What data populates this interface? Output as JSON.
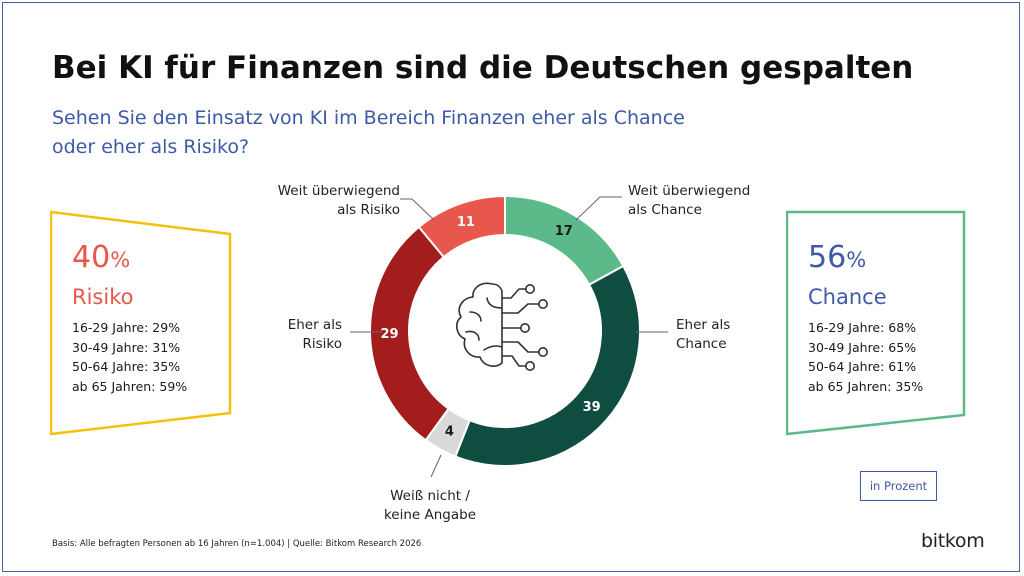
{
  "title": "Bei KI für Finanzen sind die Deutschen gespalten",
  "subtitle_lines": [
    "Sehen Sie den Einsatz von KI im Bereich Finanzen eher als Chance",
    "oder eher als Risiko?"
  ],
  "colors": {
    "accent_blue": "#3e5aa8",
    "risk_light": "#e8574b",
    "risk_dark": "#a31d1d",
    "chance_light": "#5cba8a",
    "chance_dark": "#0e4d3f",
    "unknown": "#d9d9d9",
    "box_risk_border": "#f4c20d",
    "box_chance_border": "#5cba8a",
    "icon": "#333333"
  },
  "risk_box": {
    "percent": "40",
    "unit": "%",
    "label": "Risiko",
    "ages": [
      "16-29 Jahre: 29%",
      "30-49 Jahre: 31%",
      "50-64 Jahre: 35%",
      "ab 65 Jahren: 59%"
    ]
  },
  "chance_box": {
    "percent": "56",
    "unit": "%",
    "label": "Chance",
    "ages": [
      "16-29 Jahre: 68%",
      "30-49 Jahre: 65%",
      "50-64 Jahre: 61%",
      "ab 65 Jahren: 35%"
    ]
  },
  "callouts": {
    "weit_chance": [
      "Weit überwiegend",
      "als Chance"
    ],
    "eher_chance": [
      "Eher als",
      "Chance"
    ],
    "weit_risiko": [
      "Weit überwiegend",
      "als Risiko"
    ],
    "eher_risiko": [
      "Eher als",
      "Risiko"
    ],
    "weiss_nicht": [
      "Weiß nicht /",
      "keine Angabe"
    ]
  },
  "chart_data": {
    "type": "pie",
    "variant": "donut",
    "categories": [
      "Weit überwiegend als Chance",
      "Eher als Chance",
      "Weiß nicht / keine Angabe",
      "Eher als Risiko",
      "Weit überwiegend als Risiko"
    ],
    "values": [
      17,
      39,
      4,
      29,
      11
    ],
    "data_labels": [
      "17",
      "39",
      "4",
      "29",
      "11"
    ],
    "colors": [
      "#5cba8a",
      "#0e4d3f",
      "#d9d9d9",
      "#a31d1d",
      "#e8574b"
    ],
    "center_icon": "brain-circuit-icon",
    "start": "top, clockwise"
  },
  "unit_badge": "in Prozent",
  "footer": "Basis: Alle befragten Personen ab 16 Jahren (n=1.004) | Quelle: Bitkom Research 2026",
  "logo_text": "bitkom"
}
